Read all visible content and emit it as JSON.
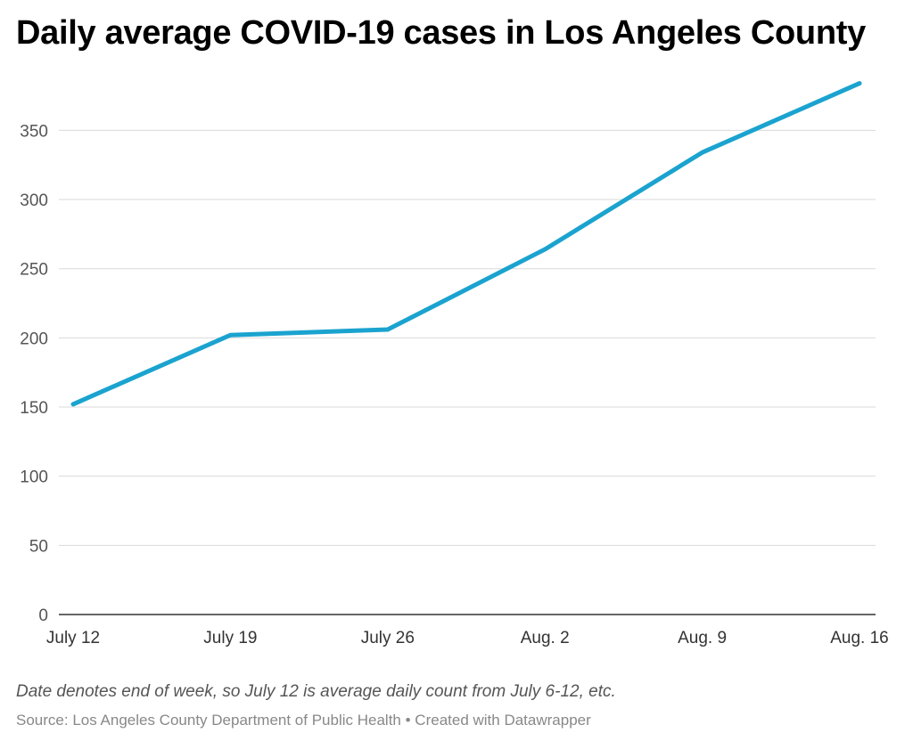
{
  "chart_data": {
    "type": "line",
    "title": "Daily average COVID-19 cases in Los Angeles County",
    "categories": [
      "July 12",
      "July 19",
      "July 26",
      "Aug. 2",
      "Aug. 9",
      "Aug. 16"
    ],
    "series": [
      {
        "values": [
          152,
          202,
          206,
          264,
          334,
          384
        ],
        "color": "#1ba3cf"
      }
    ],
    "ylim": [
      0,
      385
    ],
    "yticks": [
      0,
      50,
      100,
      150,
      200,
      250,
      300,
      350
    ],
    "grid": true,
    "xlabel": "",
    "ylabel": ""
  },
  "notes": "Date denotes end of week, so July 12 is average daily count from July 6-12, etc.",
  "source": {
    "label": "Source:",
    "name": "Los Angeles County Department of Public Health",
    "separator": "•",
    "credit": "Created with Datawrapper"
  }
}
